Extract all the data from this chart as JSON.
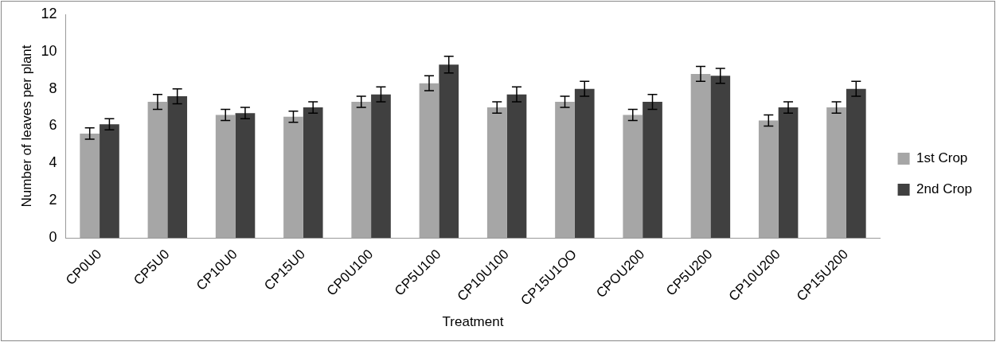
{
  "chart_data": {
    "type": "bar",
    "xlabel": "Treatment",
    "ylabel": "Number of leaves per plant",
    "categories": [
      "CP0U0",
      "CP5U0",
      "CP10U0",
      "CP15U0",
      "CP0U100",
      "CP5U100",
      "CP10U100",
      "CP15U1OO",
      "CPOU200",
      "CP5U200",
      "CP10U200",
      "CP15U200"
    ],
    "series": [
      {
        "name": "1st Crop",
        "color": "#a6a6a6",
        "values": [
          5.6,
          7.3,
          6.6,
          6.5,
          7.3,
          8.3,
          7.0,
          7.3,
          6.6,
          8.8,
          6.3,
          7.0
        ],
        "errors": [
          0.3,
          0.4,
          0.3,
          0.3,
          0.3,
          0.4,
          0.3,
          0.3,
          0.3,
          0.4,
          0.3,
          0.3
        ]
      },
      {
        "name": "2nd Crop",
        "color": "#404040",
        "values": [
          6.1,
          7.6,
          6.7,
          7.0,
          7.7,
          9.3,
          7.7,
          8.0,
          7.3,
          8.7,
          7.0,
          8.0
        ],
        "errors": [
          0.3,
          0.4,
          0.3,
          0.3,
          0.4,
          0.45,
          0.4,
          0.4,
          0.4,
          0.4,
          0.3,
          0.4
        ]
      }
    ],
    "ylim": [
      0,
      12
    ],
    "yticks": [
      0,
      2,
      4,
      6,
      8,
      10,
      12
    ],
    "grid": false,
    "legend": "right"
  }
}
